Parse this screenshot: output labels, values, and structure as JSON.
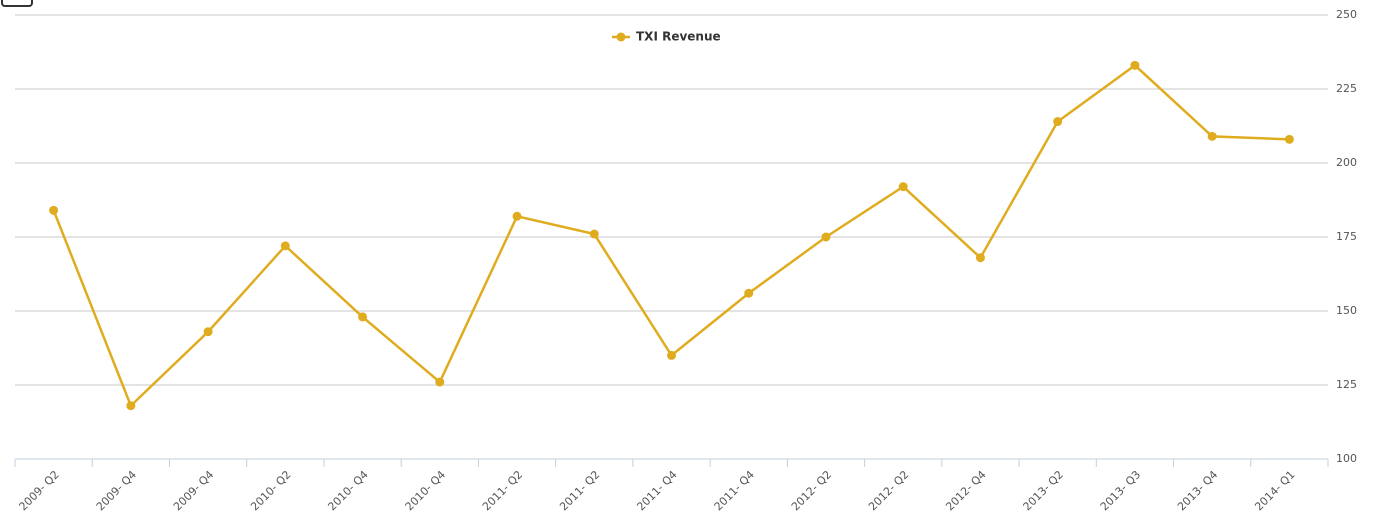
{
  "chart_data": {
    "type": "line",
    "categories": [
      "2009- Q2",
      "2009- Q4",
      "2009- Q4",
      "2010- Q2",
      "2010- Q4",
      "2010- Q4",
      "2011- Q2",
      "2011- Q2",
      "2011- Q4",
      "2011- Q4",
      "2012- Q2",
      "2012- Q2",
      "2012- Q4",
      "2013- Q2",
      "2013- Q3",
      "2013- Q4",
      "2014- Q1"
    ],
    "series": [
      {
        "name": "TXI Revenue",
        "color": "#e0ac1f",
        "values": [
          184,
          118,
          143,
          172,
          148,
          126,
          182,
          176,
          135,
          156,
          175,
          192,
          168,
          214,
          233,
          209,
          208
        ]
      }
    ],
    "ylim": [
      100,
      250
    ],
    "yticks": [
      100,
      125,
      150,
      175,
      200,
      225,
      250
    ],
    "grid": true,
    "legend": "top"
  }
}
